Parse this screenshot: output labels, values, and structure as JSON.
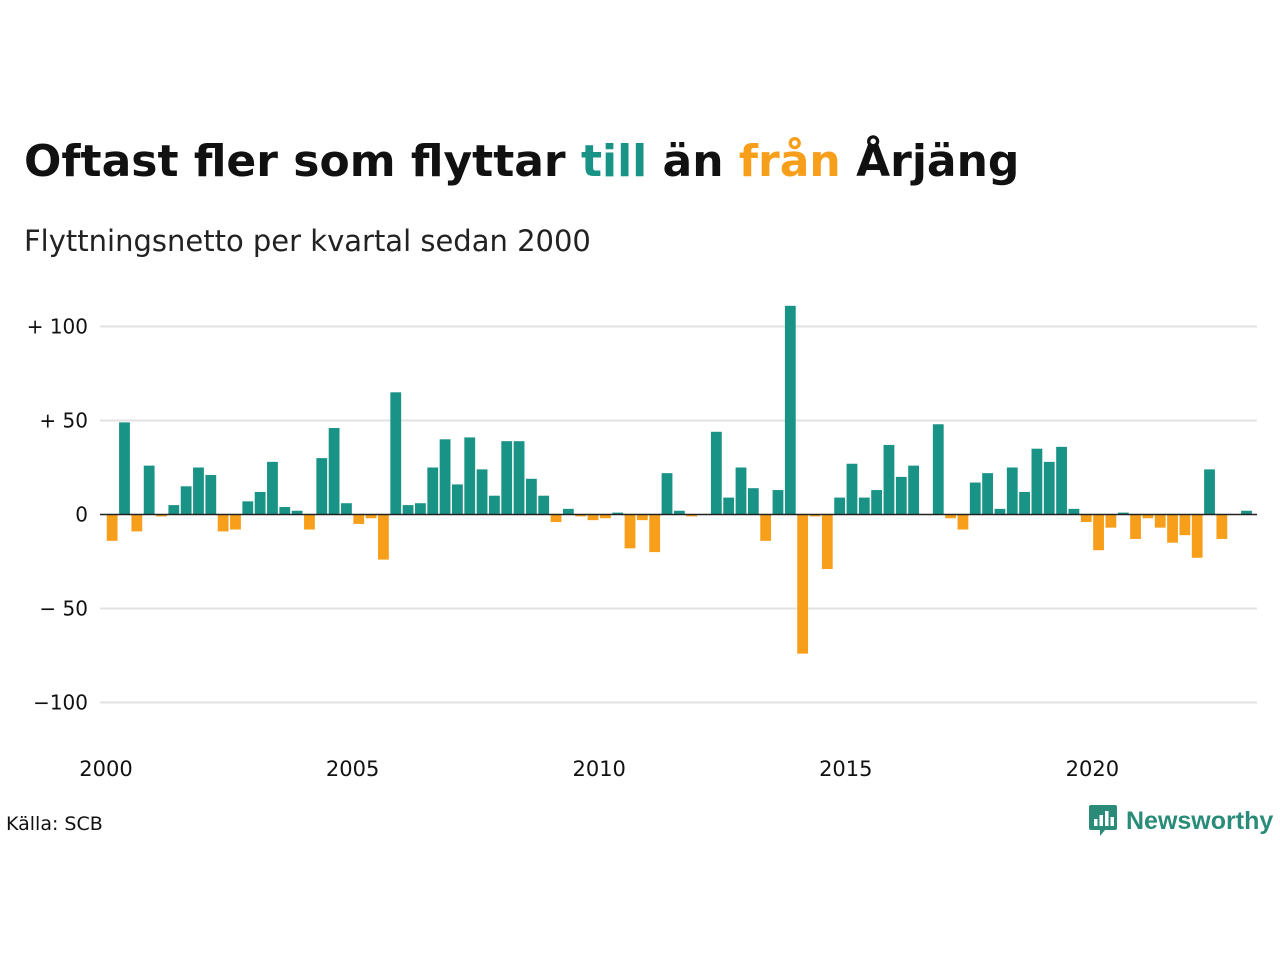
{
  "title": {
    "part1": "Oftast fler som flyttar ",
    "till": "till",
    "part2": " än ",
    "fran": "från",
    "part3": " Årjäng"
  },
  "subtitle": "Flyttningsnetto per kvartal sedan 2000",
  "source": "Källa: SCB",
  "brand": "Newsworthy",
  "colors": {
    "positive": "#199386",
    "negative": "#f79f1a",
    "grid": "#e2e2e2",
    "baseline": "#222222"
  },
  "chart_data": {
    "type": "bar",
    "ylim": [
      -120,
      120
    ],
    "y_ticks": [
      {
        "value": 100,
        "label": "+ 100"
      },
      {
        "value": 50,
        "label": "+  50"
      },
      {
        "value": 0,
        "label": "0"
      },
      {
        "value": -50,
        "label": "− 50"
      },
      {
        "value": -100,
        "label": "−100"
      }
    ],
    "x_ticks": [
      "2000",
      "2005",
      "2010",
      "2015",
      "2020"
    ],
    "start_year": 2000,
    "values": [
      -14,
      49,
      -9,
      26,
      -1,
      5,
      15,
      25,
      21,
      -9,
      -8,
      7,
      12,
      28,
      4,
      2,
      -8,
      30,
      46,
      6,
      -5,
      -2,
      -24,
      65,
      5,
      6,
      25,
      40,
      16,
      41,
      24,
      10,
      39,
      39,
      19,
      10,
      -4,
      3,
      -1,
      -3,
      -2,
      1,
      -18,
      -3,
      -20,
      22,
      2,
      -1,
      0,
      44,
      9,
      25,
      14,
      -14,
      13,
      111,
      -74,
      -1,
      -29,
      9,
      27,
      9,
      13,
      37,
      20,
      26,
      0,
      48,
      -2,
      -8,
      17,
      22,
      3,
      25,
      12,
      35,
      28,
      36,
      3,
      -4,
      -19,
      -7,
      1,
      -13,
      -2,
      -7,
      -15,
      -11,
      -23,
      24,
      -13,
      0,
      2
    ]
  }
}
